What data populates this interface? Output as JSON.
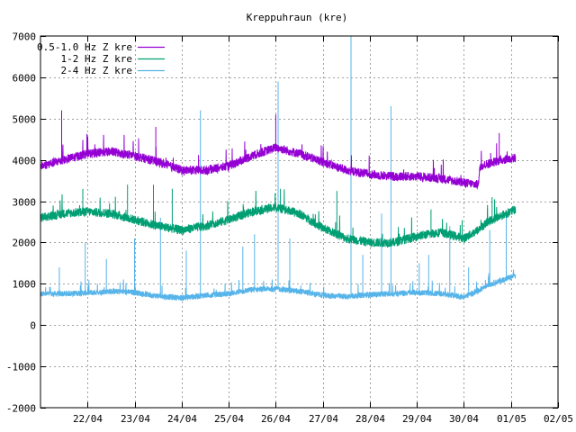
{
  "chart_data": {
    "type": "line",
    "title": "Kreppuhraun (kre)",
    "xlabel": "",
    "ylabel": "",
    "ylim": [
      -2000,
      7000
    ],
    "xlim": [
      "2018-04-21",
      "2018-05-02"
    ],
    "grid": true,
    "legend_position": "top-left",
    "y_ticks": [
      -2000,
      -1000,
      0,
      1000,
      2000,
      3000,
      4000,
      5000,
      6000,
      7000
    ],
    "x_tick_labels": [
      "22/04",
      "23/04",
      "24/04",
      "25/04",
      "26/04",
      "27/04",
      "28/04",
      "29/04",
      "30/04",
      "01/05",
      "02/05"
    ],
    "x_tick_days": [
      1,
      2,
      3,
      4,
      5,
      6,
      7,
      8,
      9,
      10,
      11
    ],
    "series": [
      {
        "name": "0.5-1.0 Hz Z kre",
        "color": "#9400d3",
        "noise": 110,
        "x_days": [
          0,
          0.5,
          1.0,
          1.5,
          2.0,
          2.5,
          3.0,
          3.5,
          4.0,
          4.5,
          5.0,
          5.5,
          6.0,
          6.5,
          7.0,
          7.5,
          8.0,
          8.5,
          9.0,
          9.3,
          9.35,
          9.5,
          9.8,
          10.1
        ],
        "values": [
          3850,
          4000,
          4150,
          4200,
          4100,
          3950,
          3750,
          3750,
          3850,
          4100,
          4300,
          4150,
          3950,
          3750,
          3650,
          3600,
          3600,
          3550,
          3450,
          3400,
          3850,
          3900,
          4000,
          4050
        ],
        "spikes": [
          [
            0.45,
            5200
          ],
          [
            2.45,
            4800
          ],
          [
            5.0,
            5100
          ],
          [
            9.75,
            4650
          ]
        ]
      },
      {
        "name": "1-2 Hz Z kre",
        "color": "#009e73",
        "noise": 110,
        "x_days": [
          0,
          0.5,
          1.0,
          1.5,
          2.0,
          2.5,
          3.0,
          3.5,
          4.0,
          4.5,
          5.0,
          5.5,
          6.0,
          6.5,
          7.0,
          7.5,
          8.0,
          8.5,
          9.0,
          9.3,
          9.5,
          9.8,
          10.1
        ],
        "values": [
          2600,
          2700,
          2750,
          2700,
          2550,
          2400,
          2300,
          2400,
          2550,
          2750,
          2850,
          2700,
          2350,
          2100,
          2000,
          2000,
          2150,
          2250,
          2100,
          2300,
          2500,
          2650,
          2800
        ],
        "spikes": [
          [
            0.9,
            3300
          ],
          [
            1.85,
            3400
          ],
          [
            2.4,
            3400
          ],
          [
            2.8,
            3300
          ],
          [
            5.1,
            3300
          ],
          [
            6.3,
            3250
          ],
          [
            8.3,
            2800
          ],
          [
            9.6,
            3100
          ]
        ]
      },
      {
        "name": "2-4 Hz Z kre",
        "color": "#56b4e9",
        "noise": 70,
        "x_days": [
          0,
          0.5,
          1.0,
          1.5,
          2.0,
          2.5,
          3.0,
          3.5,
          4.0,
          4.5,
          5.0,
          5.5,
          6.0,
          6.5,
          7.0,
          7.5,
          8.0,
          8.5,
          9.0,
          9.3,
          9.5,
          9.8,
          10.1
        ],
        "values": [
          750,
          760,
          780,
          820,
          790,
          700,
          660,
          720,
          760,
          860,
          880,
          820,
          720,
          690,
          740,
          760,
          790,
          760,
          680,
          830,
          970,
          1080,
          1200
        ],
        "spikes": [
          [
            0.4,
            1400
          ],
          [
            0.95,
            2000
          ],
          [
            1.4,
            1600
          ],
          [
            2.0,
            2100
          ],
          [
            2.55,
            2600
          ],
          [
            3.1,
            1800
          ],
          [
            3.4,
            5200
          ],
          [
            4.3,
            1900
          ],
          [
            4.55,
            2200
          ],
          [
            5.05,
            5900
          ],
          [
            5.3,
            2100
          ],
          [
            6.6,
            7000
          ],
          [
            6.85,
            1700
          ],
          [
            7.25,
            2700
          ],
          [
            7.45,
            5300
          ],
          [
            8.05,
            1500
          ],
          [
            8.25,
            1700
          ],
          [
            8.7,
            2400
          ],
          [
            9.1,
            1400
          ],
          [
            9.55,
            2300
          ],
          [
            9.9,
            2700
          ]
        ]
      }
    ]
  }
}
